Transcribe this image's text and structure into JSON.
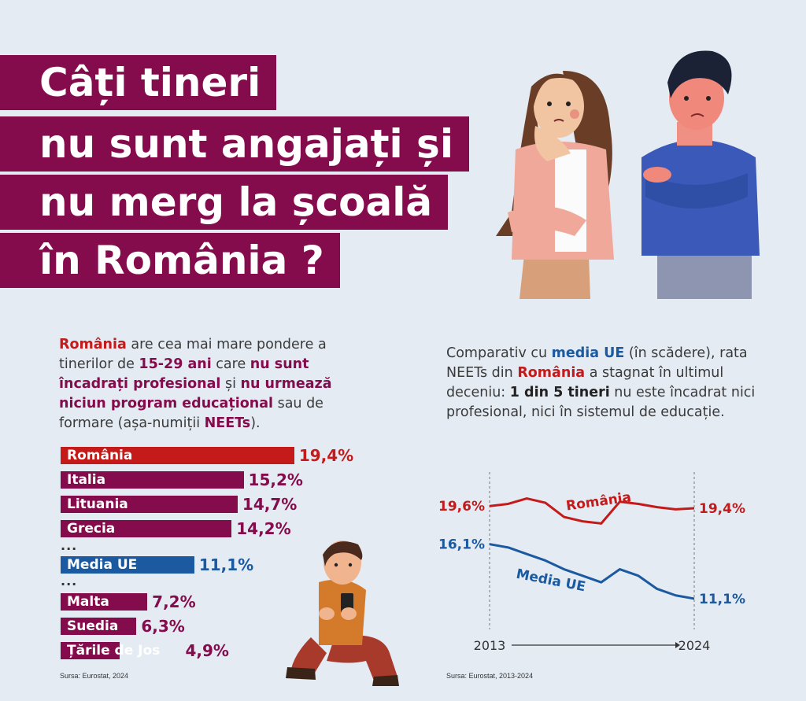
{
  "title": {
    "lines": [
      "Câți tineri",
      "nu sunt angajați și",
      "nu merg la școală",
      "în România ?"
    ]
  },
  "left_intro": {
    "p1": "România",
    "p2": " are cea mai mare pondere a tinerilor de ",
    "p3": "15-29 ani",
    "p4": " care ",
    "p5": "nu sunt încadrați profesional",
    "p6": " și ",
    "p7": "nu urmează niciun program educațional",
    "p8": " sau de formare (așa-numiții ",
    "p9": "NEETs",
    "p10": ")."
  },
  "right_intro": {
    "p1": "Comparativ cu ",
    "p2": "media UE",
    "p3": " (în scădere), rata NEETs din ",
    "p4": "România",
    "p5": " a stagnat în ultimul deceniu: ",
    "p6": "1 din 5 tineri",
    "p7": " nu este încadrat nici profesional, nici în sistemul de educație."
  },
  "bar_chart": {
    "ellipsis": "...",
    "source": "Sursa: Eurostat, 2024"
  },
  "line_chart": {
    "source": "Sursa: Eurostat, 2013-2024"
  },
  "chart_data": [
    {
      "type": "bar",
      "categories": [
        "România",
        "Italia",
        "Lituania",
        "Grecia",
        "Media UE",
        "Malta",
        "Suedia",
        "Țările de Jos"
      ],
      "values": [
        19.4,
        15.2,
        14.7,
        14.2,
        11.1,
        7.2,
        6.3,
        4.9
      ],
      "value_labels": [
        "19,4%",
        "15,2%",
        "14,7%",
        "14,2%",
        "11,1%",
        "7,2%",
        "6,3%",
        "4,9%"
      ],
      "colors": [
        "#c41a1a",
        "#850c4c",
        "#850c4c",
        "#850c4c",
        "#1b5aa0",
        "#850c4c",
        "#850c4c",
        "#850c4c"
      ],
      "orientation": "horizontal",
      "title": "",
      "xlabel": "",
      "ylabel": ""
    },
    {
      "type": "line",
      "x": [
        2013,
        2014,
        2015,
        2016,
        2017,
        2018,
        2019,
        2020,
        2021,
        2022,
        2023,
        2024
      ],
      "x_axis_labels": [
        "2013",
        "2024"
      ],
      "series": [
        {
          "name": "România",
          "color": "#c41a1a",
          "values": [
            19.6,
            19.8,
            20.3,
            19.9,
            18.6,
            18.2,
            18.0,
            20.0,
            19.8,
            19.5,
            19.3,
            19.4
          ],
          "start_label": "19,6%",
          "end_label": "19,4%"
        },
        {
          "name": "Media UE",
          "color": "#1b5aa0",
          "values": [
            16.1,
            15.8,
            15.2,
            14.6,
            13.8,
            13.2,
            12.6,
            13.8,
            13.2,
            12.0,
            11.4,
            11.1
          ],
          "start_label": "16,1%",
          "end_label": "11,1%"
        }
      ],
      "ylim": [
        9,
        22
      ],
      "grid": false,
      "title": "",
      "xlabel": "",
      "ylabel": ""
    }
  ],
  "colors": {
    "plum": "#850c4c",
    "red": "#c41a1a",
    "blue": "#1b5aa0",
    "background": "#e4ebf3"
  }
}
